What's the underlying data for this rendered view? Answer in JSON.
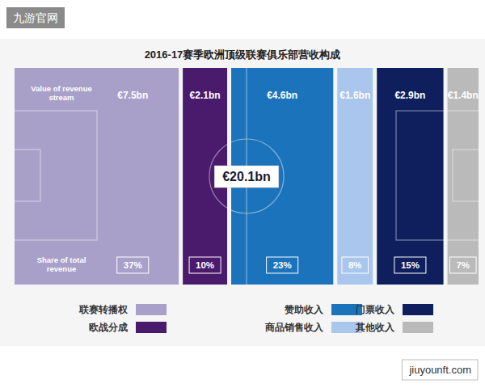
{
  "chart_data": {
    "type": "bar",
    "title": "2016-17赛季欧洲顶级联赛俱乐部营收构成",
    "categories": [
      "联赛转播权",
      "欧战分成",
      "赞助收入",
      "商品销售收入",
      "门票收入",
      "其他收入"
    ],
    "values": [
      7.5,
      2.1,
      4.6,
      1.6,
      2.9,
      1.4
    ],
    "value_labels": [
      "€7.5bn",
      "€2.1bn",
      "€4.6bn",
      "€1.6bn",
      "€2.9bn",
      "€1.4bn"
    ],
    "shares": [
      37,
      10,
      23,
      8,
      15,
      7
    ],
    "share_labels": [
      "37%",
      "10%",
      "23%",
      "8%",
      "15%",
      "7%"
    ],
    "total": 20.1,
    "total_label": "€20.1bn",
    "value_row_label": "Value of revenue stream",
    "share_row_label": "Share of total revenue",
    "xlim": [
      0,
      100
    ],
    "colors": [
      "#a9a0ca",
      "#4a1a6c",
      "#1b74bb",
      "#a9c6ec",
      "#0f1f5e",
      "#bababa"
    ],
    "data_labels": true,
    "tick_labels": false,
    "legend": "bottom",
    "watermarks": [
      "九游官网",
      "jiuyounft.com"
    ]
  }
}
